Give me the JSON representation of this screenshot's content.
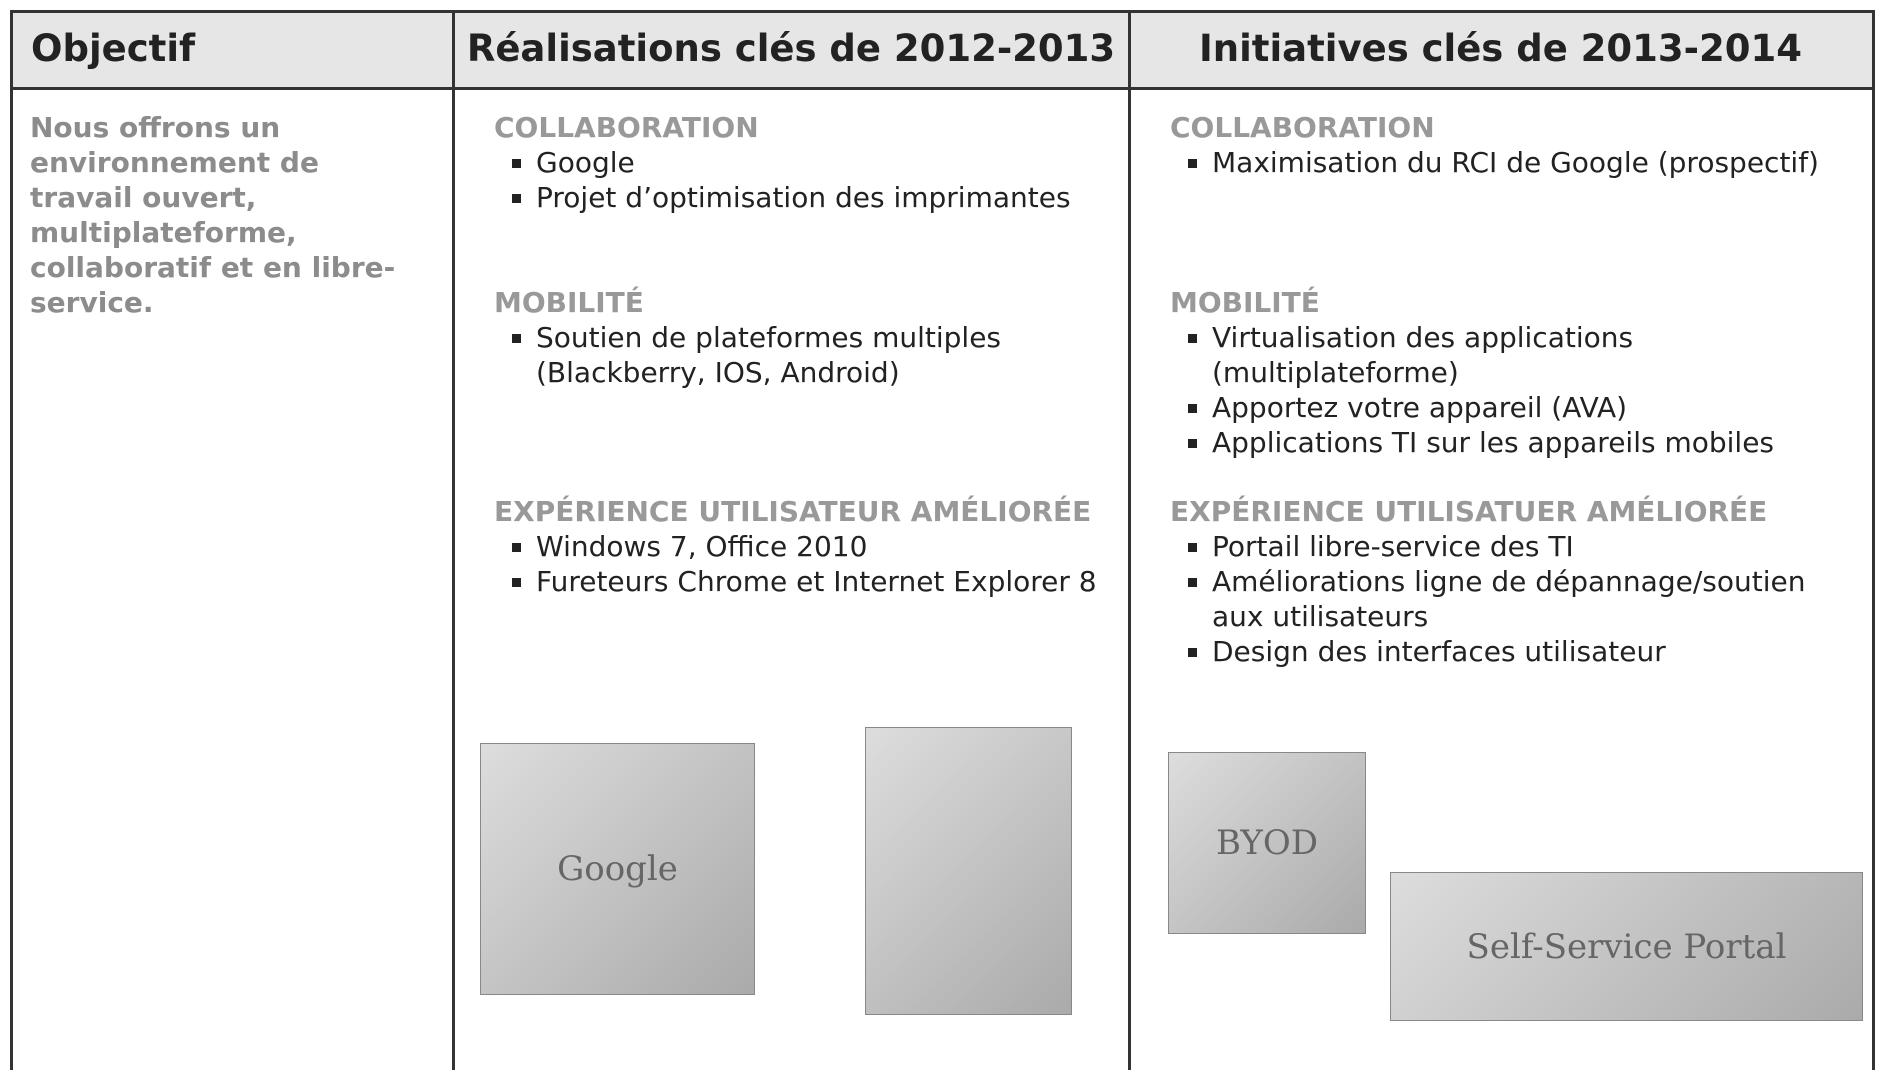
{
  "header": [
    "Objectif",
    "Réalisations clés de 2012-2013",
    "Initiatives clés de 2013-2014"
  ],
  "objective": "Nous offrons un environnement de travail ouvert, multiplateforme, collaboratif et en libre-service.",
  "columns": [
    {
      "sections": [
        {
          "heading": "COLLABORATION",
          "items": [
            "Google",
            "Projet d’optimisation des imprimantes"
          ]
        },
        {
          "heading": "MOBILITÉ",
          "items": [
            "Soutien de plateformes multiples (Blackberry, IOS, Android)"
          ]
        },
        {
          "heading": "EXPÉRIENCE UTILISATEUR AMÉLIORÉE",
          "items": [
            "Windows 7, Office 2010",
            "Fureteurs Chrome et Internet Explorer 8"
          ]
        }
      ],
      "images": [
        "Google"
      ]
    },
    {
      "sections": [
        {
          "heading": "COLLABORATION",
          "items": [
            "Maximisation du RCI de Google (prospectif)"
          ]
        },
        {
          "heading": "MOBILITÉ",
          "items": [
            "Virtualisation des applications (multiplateforme)",
            "Apportez votre appareil (AVA)",
            "Applications TI sur les appareils mobiles"
          ]
        },
        {
          "heading": "EXPÉRIENCE UTILISATUER AMÉLIORÉE",
          "items": [
            "Portail libre-service des TI",
            "Améliorations ligne de dépannage/soutien aux utilisateurs",
            "Design des interfaces utilisateur"
          ]
        }
      ],
      "images": [
        "BYOD",
        "Self-Service Portal"
      ]
    }
  ]
}
